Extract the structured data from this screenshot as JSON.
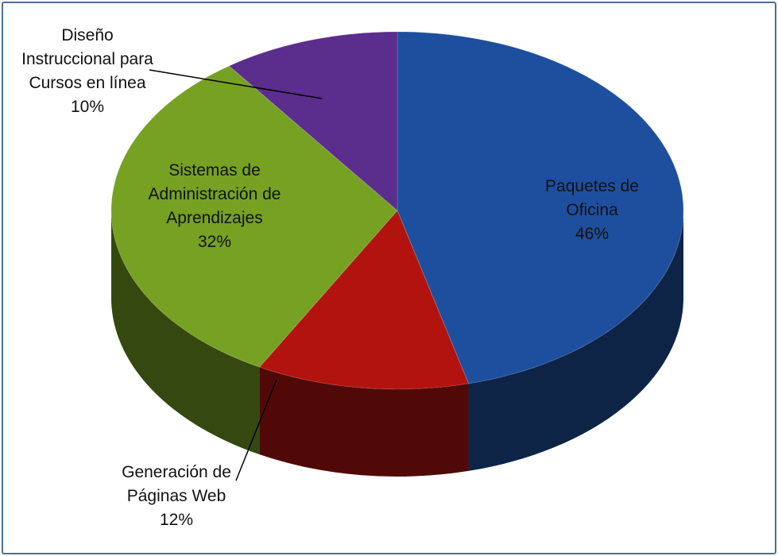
{
  "chart_data": {
    "type": "pie3d",
    "categories": [
      "Paquetes de Oficina",
      "Generación de Páginas Web",
      "Sistemas de Administración de Aprendizajes",
      "Diseño Instruccional para Cursos en línea"
    ],
    "values": [
      46,
      12,
      32,
      10
    ],
    "value_labels": [
      "46%",
      "12%",
      "32%",
      "10%"
    ],
    "colors": [
      "#1e4f9e",
      "#b3130f",
      "#76a123",
      "#5b2d8c"
    ]
  }
}
